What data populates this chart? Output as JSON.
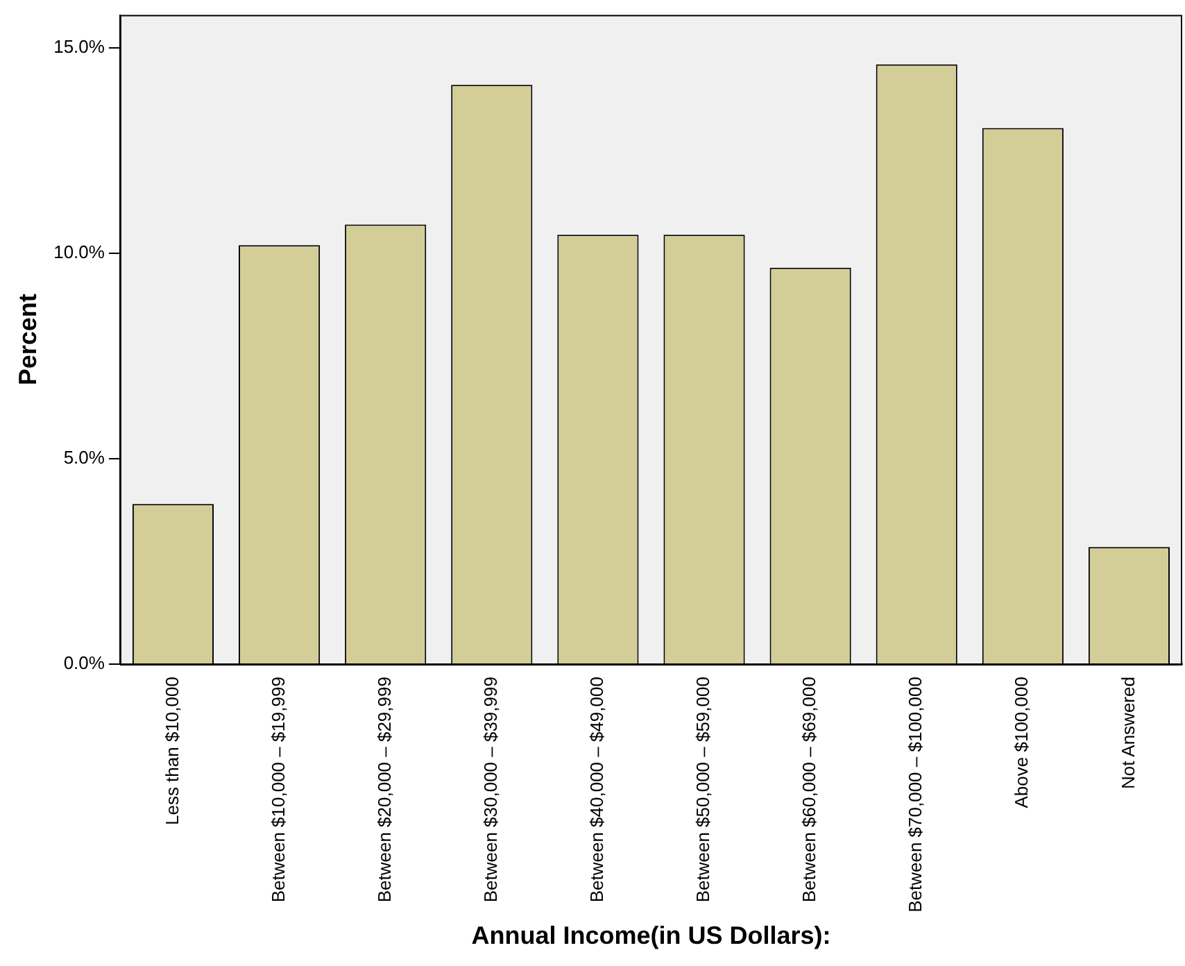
{
  "chart_data": {
    "type": "bar",
    "xlabel": "Annual Income(in US Dollars):",
    "ylabel": "Percent",
    "categories": [
      "Less than $10,000",
      "Between $10,000 – $19,999",
      "Between $20,000 – $29,999",
      "Between $30,000 – $39,999",
      "Between $40,000 – $49,000",
      "Between $50,000 – $59,000",
      "Between $60,000 – $69,000",
      "Between $70,000 – $100,000",
      "Above $100,000",
      "Not Answered"
    ],
    "values": [
      3.9,
      10.2,
      10.7,
      14.1,
      10.45,
      10.45,
      9.65,
      14.6,
      13.05,
      2.85
    ],
    "color": "#d3ce97",
    "ylim": [
      0,
      15.8
    ],
    "yticks": [
      {
        "value": 0,
        "label": "0.0%"
      },
      {
        "value": 5,
        "label": "5.0%"
      },
      {
        "value": 10,
        "label": "10.0%"
      },
      {
        "value": 15,
        "label": "15.0%"
      }
    ],
    "grid": false,
    "legend": false
  }
}
